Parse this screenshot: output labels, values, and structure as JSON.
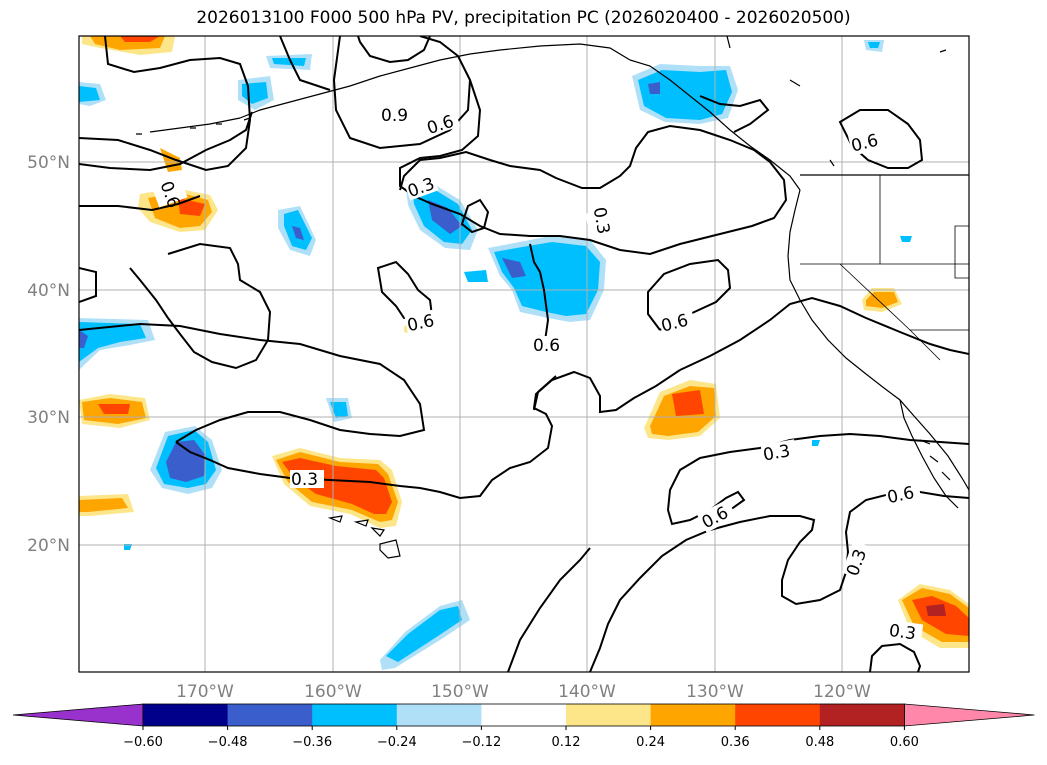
{
  "title": "2026013100 F000 500 hPa PV, precipitation PC (2026020400 - 2026020500)",
  "lat_labels": [
    "50°N",
    "40°N",
    "30°N",
    "20°N"
  ],
  "lon_labels": [
    "170°W",
    "160°W",
    "150°W",
    "140°W",
    "130°W",
    "120°W"
  ],
  "contour_labels": [
    "0.9",
    "0.6",
    "0.6",
    "0.6",
    "0.3",
    "0.3",
    "0.6",
    "0.6",
    "0.6",
    "0.3",
    "0.3",
    "0.6",
    "0.6",
    "0.3",
    "0.3"
  ],
  "colorbar": {
    "ticks": [
      "−0.60",
      "−0.48",
      "−0.36",
      "−0.24",
      "−0.12",
      "0.12",
      "0.24",
      "0.36",
      "0.48",
      "0.60"
    ],
    "colors": [
      "#9932cc",
      "#00008b",
      "#3a5fcd",
      "#00bfff",
      "#b0e0f8",
      "#ffffff",
      "#fde68a",
      "#ffa500",
      "#ff4500",
      "#b22222",
      "#ff88aa"
    ]
  },
  "colors": {
    "blue_dark": "#3a5fcd",
    "blue": "#00bfff",
    "blue_light": "#b0e0f8",
    "yellow": "#fde68a",
    "orange": "#ffa500",
    "red": "#ff4500",
    "dark_red": "#b22222"
  }
}
